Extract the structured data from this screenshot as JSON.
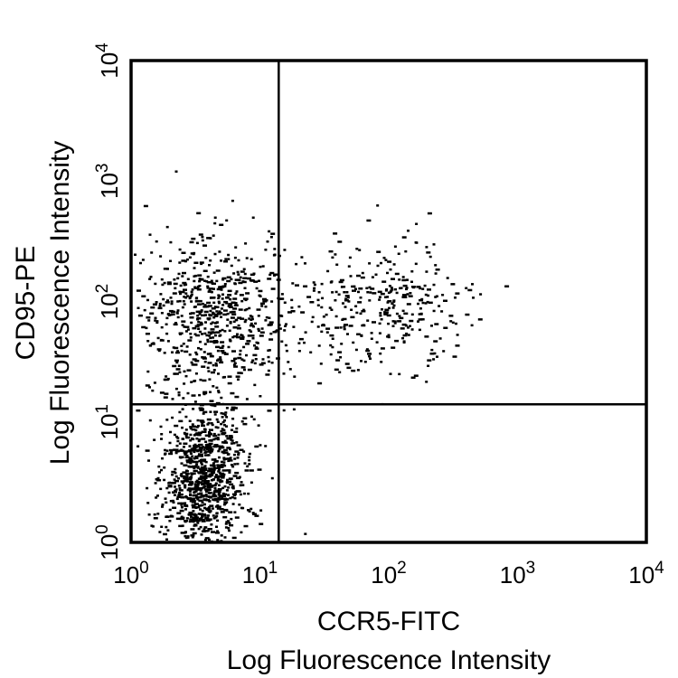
{
  "chart_data": {
    "type": "scatter",
    "title": "",
    "xlabel_line1": "CCR5-FITC",
    "xlabel_line2": "Log Fluorescence Intensity",
    "ylabel_line1": "CD95-PE",
    "ylabel_line2": "Log Fluorescence Intensity",
    "x_scale": "log",
    "y_scale": "log",
    "xlim": [
      1,
      10000
    ],
    "ylim": [
      1,
      10000
    ],
    "x_ticks": [
      1,
      10,
      100,
      1000,
      10000
    ],
    "y_ticks": [
      1,
      10,
      100,
      1000,
      10000
    ],
    "tick_labels": [
      {
        "base": "10",
        "exp": "0"
      },
      {
        "base": "10",
        "exp": "1"
      },
      {
        "base": "10",
        "exp": "2"
      },
      {
        "base": "10",
        "exp": "3"
      },
      {
        "base": "10",
        "exp": "4"
      }
    ],
    "quadrant_gates": {
      "x": 14,
      "y": 14
    },
    "grid": false,
    "legend": "none",
    "point_color": "#000000",
    "clusters": [
      {
        "x_log10_center": 0.55,
        "y_log10_center": 0.55,
        "x_log10_sd": 0.17,
        "y_log10_sd": 0.32,
        "count": 950
      },
      {
        "x_log10_center": 0.6,
        "y_log10_center": 1.9,
        "x_log10_sd": 0.3,
        "y_log10_sd": 0.33,
        "count": 650
      },
      {
        "x_log10_center": 1.9,
        "y_log10_center": 1.95,
        "x_log10_sd": 0.35,
        "y_log10_sd": 0.25,
        "count": 330
      }
    ],
    "points": [
      [
        22,
        1.2
      ],
      [
        18,
        13
      ],
      [
        40,
        320
      ],
      [
        80,
        640
      ],
      [
        160,
        450
      ],
      [
        200,
        550
      ],
      [
        6,
        700
      ],
      [
        280,
        160
      ],
      [
        320,
        110
      ],
      [
        1.05,
        250
      ]
    ]
  }
}
